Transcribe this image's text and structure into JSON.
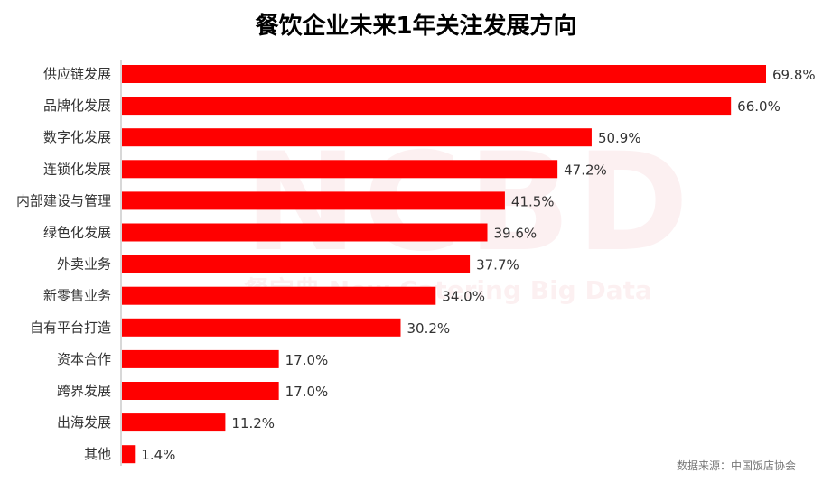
{
  "chart_data": {
    "type": "bar",
    "orientation": "horizontal",
    "title": "餐饮企业未来1年关注发展方向",
    "categories": [
      "供应链发展",
      "品牌化发展",
      "数字化发展",
      "连锁化发展",
      "内部建设与管理",
      "绿色化发展",
      "外卖业务",
      "新零售业务",
      "自有平台打造",
      "资本合作",
      "跨界发展",
      "出海发展",
      "其他"
    ],
    "values": [
      69.8,
      66.0,
      50.9,
      47.2,
      41.5,
      39.6,
      37.7,
      34.0,
      30.2,
      17.0,
      17.0,
      11.2,
      1.4
    ],
    "data_labels": [
      "69.8%",
      "66.0%",
      "50.9%",
      "47.2%",
      "41.5%",
      "39.6%",
      "37.7%",
      "34.0%",
      "30.2%",
      "17.0%",
      "17.0%",
      "11.2%",
      "1.4%"
    ],
    "xlim": [
      0,
      70
    ],
    "grid": false,
    "bar_color": "#ff0000",
    "source": "数据来源：中国饭店协会",
    "watermark": "NCBD 餐宝典 New Catering Big Data"
  }
}
